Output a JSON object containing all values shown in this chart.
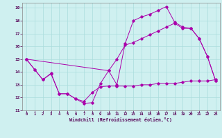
{
  "xlabel": "Windchill (Refroidissement éolien,°C)",
  "bg_color": "#cff0f0",
  "grid_color": "#aadddd",
  "line_color": "#aa00aa",
  "xlim": [
    -0.5,
    23.5
  ],
  "ylim": [
    11,
    19.4
  ],
  "xticks": [
    0,
    1,
    2,
    3,
    4,
    5,
    6,
    7,
    8,
    9,
    10,
    11,
    12,
    13,
    14,
    15,
    16,
    17,
    18,
    19,
    20,
    21,
    22,
    23
  ],
  "yticks": [
    11,
    12,
    13,
    14,
    15,
    16,
    17,
    18,
    19
  ],
  "line1_x": [
    0,
    1,
    2,
    3,
    4,
    5,
    6,
    7,
    8,
    9,
    10,
    11,
    12,
    13,
    14,
    15,
    16,
    17,
    18,
    19,
    20,
    21,
    22,
    23
  ],
  "line1_y": [
    15.0,
    14.2,
    13.4,
    13.9,
    12.3,
    12.3,
    11.9,
    11.55,
    11.6,
    13.1,
    14.1,
    13.0,
    16.2,
    18.0,
    18.3,
    18.5,
    18.8,
    19.1,
    17.9,
    17.5,
    17.4,
    16.6,
    15.2,
    13.3
  ],
  "line2_x": [
    0,
    1,
    2,
    3,
    4,
    5,
    6,
    7,
    8,
    9,
    10,
    11,
    12,
    13,
    14,
    15,
    16,
    17,
    18,
    19,
    20,
    21,
    22,
    23
  ],
  "line2_y": [
    15.0,
    14.2,
    13.4,
    13.85,
    12.3,
    12.3,
    11.9,
    11.7,
    12.4,
    12.85,
    12.9,
    12.9,
    12.9,
    12.9,
    13.0,
    13.0,
    13.1,
    13.1,
    13.1,
    13.2,
    13.3,
    13.3,
    13.3,
    13.4
  ],
  "line3_x": [
    0,
    10,
    11,
    12,
    13,
    14,
    15,
    16,
    17,
    18,
    19,
    20,
    21,
    22,
    23
  ],
  "line3_y": [
    15.0,
    14.1,
    15.0,
    16.1,
    16.3,
    16.6,
    16.9,
    17.2,
    17.5,
    17.8,
    17.4,
    17.4,
    16.6,
    15.2,
    13.3
  ]
}
